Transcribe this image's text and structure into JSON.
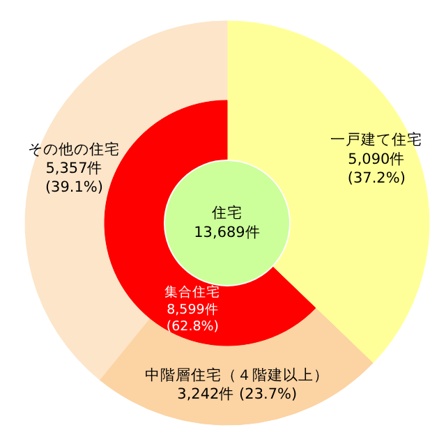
{
  "chart_data": [
    {
      "type": "donut",
      "categories": [
        "一戸建て住宅",
        "中階層住宅（４階建以上）",
        "その他の住宅"
      ],
      "values": [
        5090,
        3242,
        5357
      ],
      "value_labels": [
        "5,090件\n(37.2%)",
        "3,242件 (23.7%)",
        "5,357件\n(39.1%)"
      ],
      "colors": [
        "#ffff99",
        "#fcd3a3",
        "#fde5c9"
      ]
    },
    {
      "type": "donut",
      "categories": [
        null,
        "集合住宅"
      ],
      "values": [
        5090,
        8599
      ],
      "value_labels": [
        null,
        "8,599件\n(62.8%)"
      ],
      "colors": [
        "#ffff99",
        "#ff0000"
      ],
      "annotations": [
        "住宅\n13,689件"
      ]
    }
  ]
}
